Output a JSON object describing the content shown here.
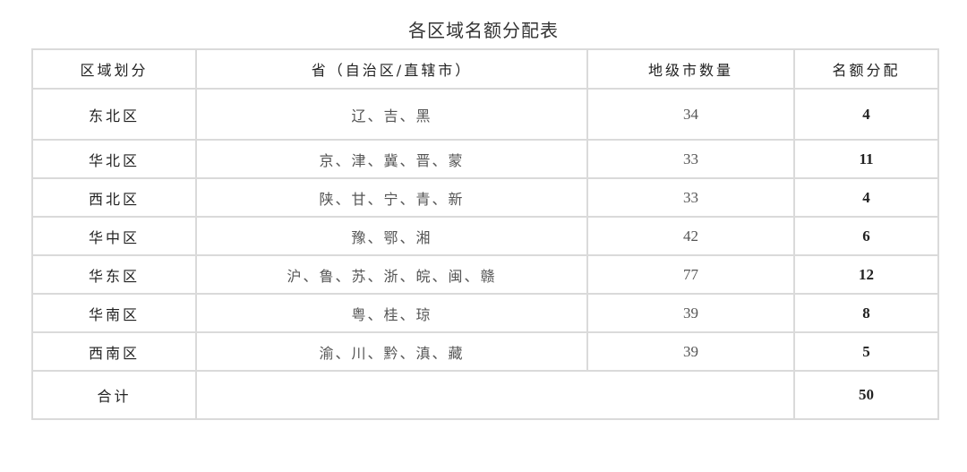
{
  "title": "各区域名额分配表",
  "headers": [
    "区域划分",
    "省（自治区/直辖市）",
    "地级市数量",
    "名额分配"
  ],
  "rows": [
    {
      "region": "东北区",
      "provinces": "辽、吉、黑",
      "cities": "34",
      "quota": "4"
    },
    {
      "region": "华北区",
      "provinces": "京、津、冀、晋、蒙",
      "cities": "33",
      "quota": "11"
    },
    {
      "region": "西北区",
      "provinces": "陕、甘、宁、青、新",
      "cities": "33",
      "quota": "4"
    },
    {
      "region": "华中区",
      "provinces": "豫、鄂、湘",
      "cities": "42",
      "quota": "6"
    },
    {
      "region": "华东区",
      "provinces": "沪、鲁、苏、浙、皖、闽、赣",
      "cities": "77",
      "quota": "12"
    },
    {
      "region": "华南区",
      "provinces": "粤、桂、琼",
      "cities": "39",
      "quota": "8"
    },
    {
      "region": "西南区",
      "provinces": "渝、川、黔、滇、藏",
      "cities": "39",
      "quota": "5"
    }
  ],
  "total": {
    "label": "合计",
    "quota": "50"
  }
}
